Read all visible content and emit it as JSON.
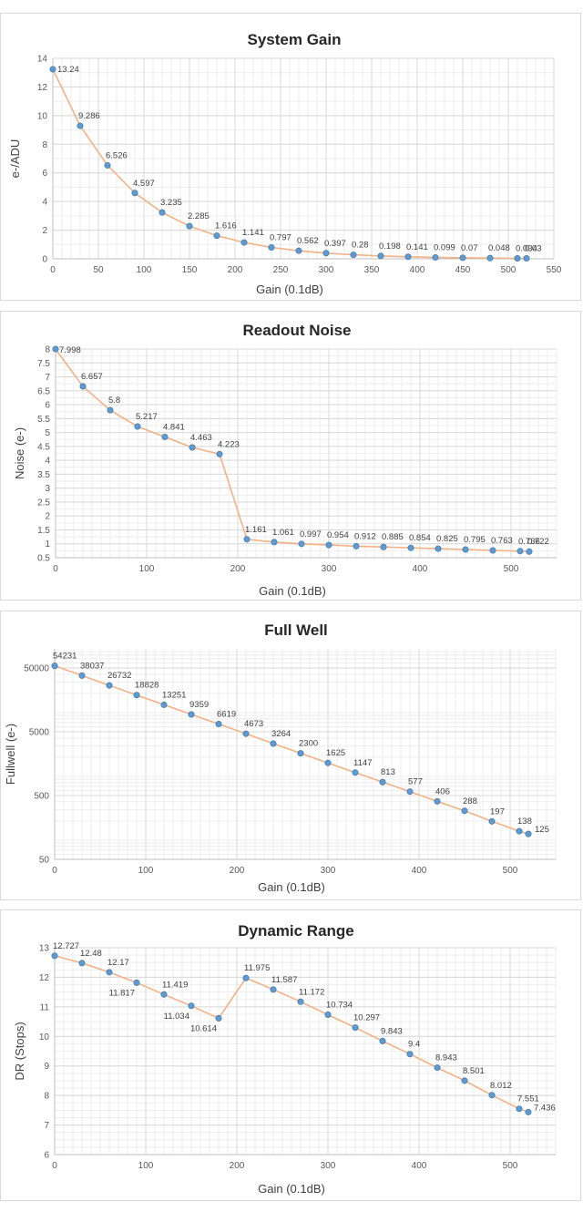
{
  "colors": {
    "line": "#f4b183",
    "marker": "#5b9bd5",
    "grid": "#d9d9d9"
  },
  "chart_data": [
    {
      "type": "line",
      "title": "System Gain",
      "xlabel": "Gain (0.1dB)",
      "ylabel": "e-/ADU",
      "xlim": [
        0,
        550
      ],
      "ylim": [
        0,
        14
      ],
      "x_ticks": [
        0,
        50,
        100,
        150,
        200,
        250,
        300,
        350,
        400,
        450,
        500,
        550
      ],
      "x_tick_labels": [
        "0",
        "50",
        "100",
        "150",
        "200",
        "250",
        "300",
        "350",
        "400",
        "450",
        "500",
        "550"
      ],
      "y_ticks": [
        0,
        2,
        4,
        6,
        8,
        10,
        12,
        14
      ],
      "y_tick_labels": [
        "0",
        "2",
        "4",
        "6",
        "8",
        "10",
        "12",
        "14"
      ],
      "grid": true,
      "x": [
        0,
        30,
        60,
        90,
        120,
        150,
        180,
        210,
        240,
        270,
        300,
        330,
        360,
        390,
        420,
        450,
        480,
        510,
        520
      ],
      "y": [
        13.24,
        9.286,
        6.526,
        4.597,
        3.235,
        2.285,
        1.616,
        1.141,
        0.797,
        0.562,
        0.397,
        0.28,
        0.198,
        0.141,
        0.099,
        0.07,
        0.048,
        0.034,
        0.03
      ],
      "labels": [
        "13.24",
        "9.286",
        "6.526",
        "4.597",
        "3.235",
        "2.285",
        "1.616",
        "1.141",
        "0.797",
        "0.562",
        "0.397",
        "0.28",
        "0.198",
        "0.141",
        "0.099",
        "0.07",
        "0.048",
        "0.034",
        "0.03"
      ]
    },
    {
      "type": "line",
      "title": "Readout Noise",
      "xlabel": "Gain (0.1dB)",
      "ylabel": "Noise (e-)",
      "xlim": [
        0,
        550
      ],
      "ylim": [
        0.5,
        8
      ],
      "x_ticks": [
        0,
        100,
        200,
        300,
        400,
        500
      ],
      "x_tick_labels": [
        "0",
        "100",
        "200",
        "300",
        "400",
        "500"
      ],
      "y_ticks": [
        0.5,
        1,
        1.5,
        2,
        2.5,
        3,
        3.5,
        4,
        4.5,
        5,
        5.5,
        6,
        6.5,
        7,
        7.5,
        8
      ],
      "y_tick_labels": [
        "0.5",
        "1",
        "1.5",
        "2",
        "2.5",
        "3",
        "3.5",
        "4",
        "4.5",
        "5",
        "5.5",
        "6",
        "6.5",
        "7",
        "7.5",
        "8"
      ],
      "grid": true,
      "x": [
        0,
        30,
        60,
        90,
        120,
        150,
        180,
        210,
        240,
        270,
        300,
        330,
        360,
        390,
        420,
        450,
        480,
        510,
        520
      ],
      "y": [
        7.998,
        6.657,
        5.8,
        5.217,
        4.841,
        4.463,
        4.223,
        1.161,
        1.061,
        0.997,
        0.954,
        0.912,
        0.885,
        0.854,
        0.825,
        0.795,
        0.763,
        0.736,
        0.722
      ],
      "labels": [
        "7.998",
        "6.657",
        "5.8",
        "5.217",
        "4.841",
        "4.463",
        "4.223",
        "1.161",
        "1.061",
        "0.997",
        "0.954",
        "0.912",
        "0.885",
        "0.854",
        "0.825",
        "0.795",
        "0.763",
        "0.736",
        "0.722"
      ]
    },
    {
      "type": "line",
      "title": "Full Well",
      "xlabel": "Gain (0.1dB)",
      "ylabel": "Fullwell (e-)",
      "xlim": [
        0,
        550
      ],
      "ylim": [
        50,
        100000
      ],
      "log_y": true,
      "x_ticks": [
        0,
        100,
        200,
        300,
        400,
        500
      ],
      "x_tick_labels": [
        "0",
        "100",
        "200",
        "300",
        "400",
        "500"
      ],
      "y_ticks": [
        50,
        500,
        5000,
        50000
      ],
      "y_tick_labels": [
        "50",
        "500",
        "5000",
        "50000"
      ],
      "grid": true,
      "x": [
        0,
        30,
        60,
        90,
        120,
        150,
        180,
        210,
        240,
        270,
        300,
        330,
        360,
        390,
        420,
        450,
        480,
        510,
        520
      ],
      "y": [
        54231,
        38037,
        26732,
        18828,
        13251,
        9359,
        6619,
        4673,
        3264,
        2300,
        1625,
        1147,
        813,
        577,
        406,
        288,
        197,
        138,
        125
      ],
      "labels": [
        "54231",
        "38037",
        "26732",
        "18828",
        "13251",
        "9359",
        "6619",
        "4673",
        "3264",
        "2300",
        "1625",
        "1147",
        "813",
        "577",
        "406",
        "288",
        "197",
        "138",
        "125"
      ]
    },
    {
      "type": "line",
      "title": "Dynamic Range",
      "xlabel": "Gain (0.1dB)",
      "ylabel": "DR (Stops)",
      "xlim": [
        0,
        550
      ],
      "ylim": [
        6,
        13
      ],
      "x_ticks": [
        0,
        100,
        200,
        300,
        400,
        500
      ],
      "x_tick_labels": [
        "0",
        "100",
        "200",
        "300",
        "400",
        "500"
      ],
      "y_ticks": [
        6,
        7,
        8,
        9,
        10,
        11,
        12,
        13
      ],
      "y_tick_labels": [
        "6",
        "7",
        "8",
        "9",
        "10",
        "11",
        "12",
        "13"
      ],
      "grid": true,
      "x": [
        0,
        30,
        60,
        90,
        120,
        150,
        180,
        210,
        240,
        270,
        300,
        330,
        360,
        390,
        420,
        450,
        480,
        510,
        520
      ],
      "y": [
        12.727,
        12.48,
        12.17,
        11.817,
        11.419,
        11.034,
        10.614,
        11.975,
        11.587,
        11.172,
        10.734,
        10.297,
        9.843,
        9.4,
        8.943,
        8.501,
        8.012,
        7.551,
        7.436
      ],
      "labels": [
        "12.727",
        "12.48",
        "12.17",
        "11.817",
        "11.419",
        "11.034",
        "10.614",
        "11.975",
        "11.587",
        "11.172",
        "10.734",
        "10.297",
        "9.843",
        "9.4",
        "8.943",
        "8.501",
        "8.012",
        "7.551",
        "7.436"
      ]
    }
  ]
}
